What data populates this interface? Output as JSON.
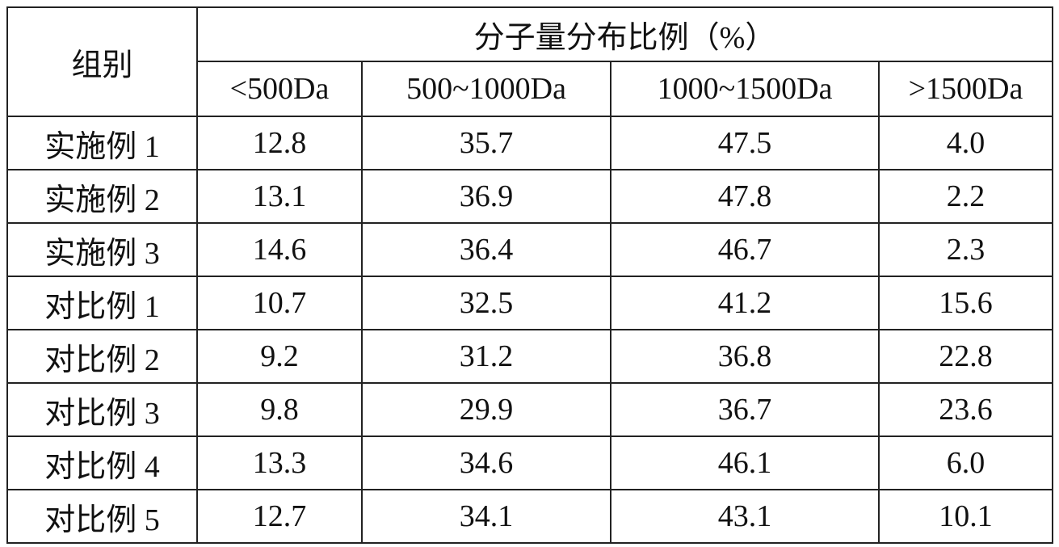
{
  "table": {
    "header": {
      "group": "组别",
      "title": "分子量分布比例（%）",
      "columns": [
        "<500Da",
        "500~1000Da",
        "1000~1500Da",
        ">1500Da"
      ]
    },
    "rows": [
      [
        "实施例 1",
        "12.8",
        "35.7",
        "47.5",
        "4.0"
      ],
      [
        "实施例 2",
        "13.1",
        "36.9",
        "47.8",
        "2.2"
      ],
      [
        "实施例 3",
        "14.6",
        "36.4",
        "46.7",
        "2.3"
      ],
      [
        "对比例 1",
        "10.7",
        "32.5",
        "41.2",
        "15.6"
      ],
      [
        "对比例 2",
        "9.2",
        "31.2",
        "36.8",
        "22.8"
      ],
      [
        "对比例 3",
        "9.8",
        "29.9",
        "36.7",
        "23.6"
      ],
      [
        "对比例 4",
        "13.3",
        "34.6",
        "46.1",
        "6.0"
      ],
      [
        "对比例 5",
        "12.7",
        "34.1",
        "43.1",
        "10.1"
      ]
    ]
  }
}
